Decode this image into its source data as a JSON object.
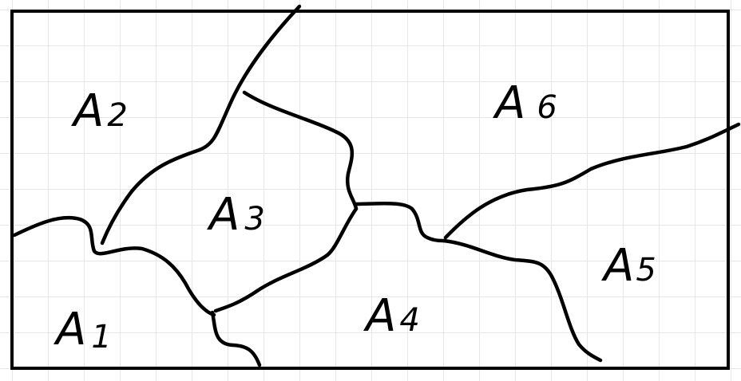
{
  "diagram": {
    "regions": [
      {
        "id": "A1",
        "letter": "A",
        "index": "1"
      },
      {
        "id": "A2",
        "letter": "A",
        "index": "2"
      },
      {
        "id": "A3",
        "letter": "A",
        "index": "3"
      },
      {
        "id": "A4",
        "letter": "A",
        "index": "4"
      },
      {
        "id": "A5",
        "letter": "A",
        "index": "5"
      },
      {
        "id": "A6",
        "letter": "A",
        "index": "6"
      }
    ],
    "colors": {
      "ink": "#000000",
      "grid": "#e6e6e6",
      "paper": "#ffffff"
    }
  }
}
